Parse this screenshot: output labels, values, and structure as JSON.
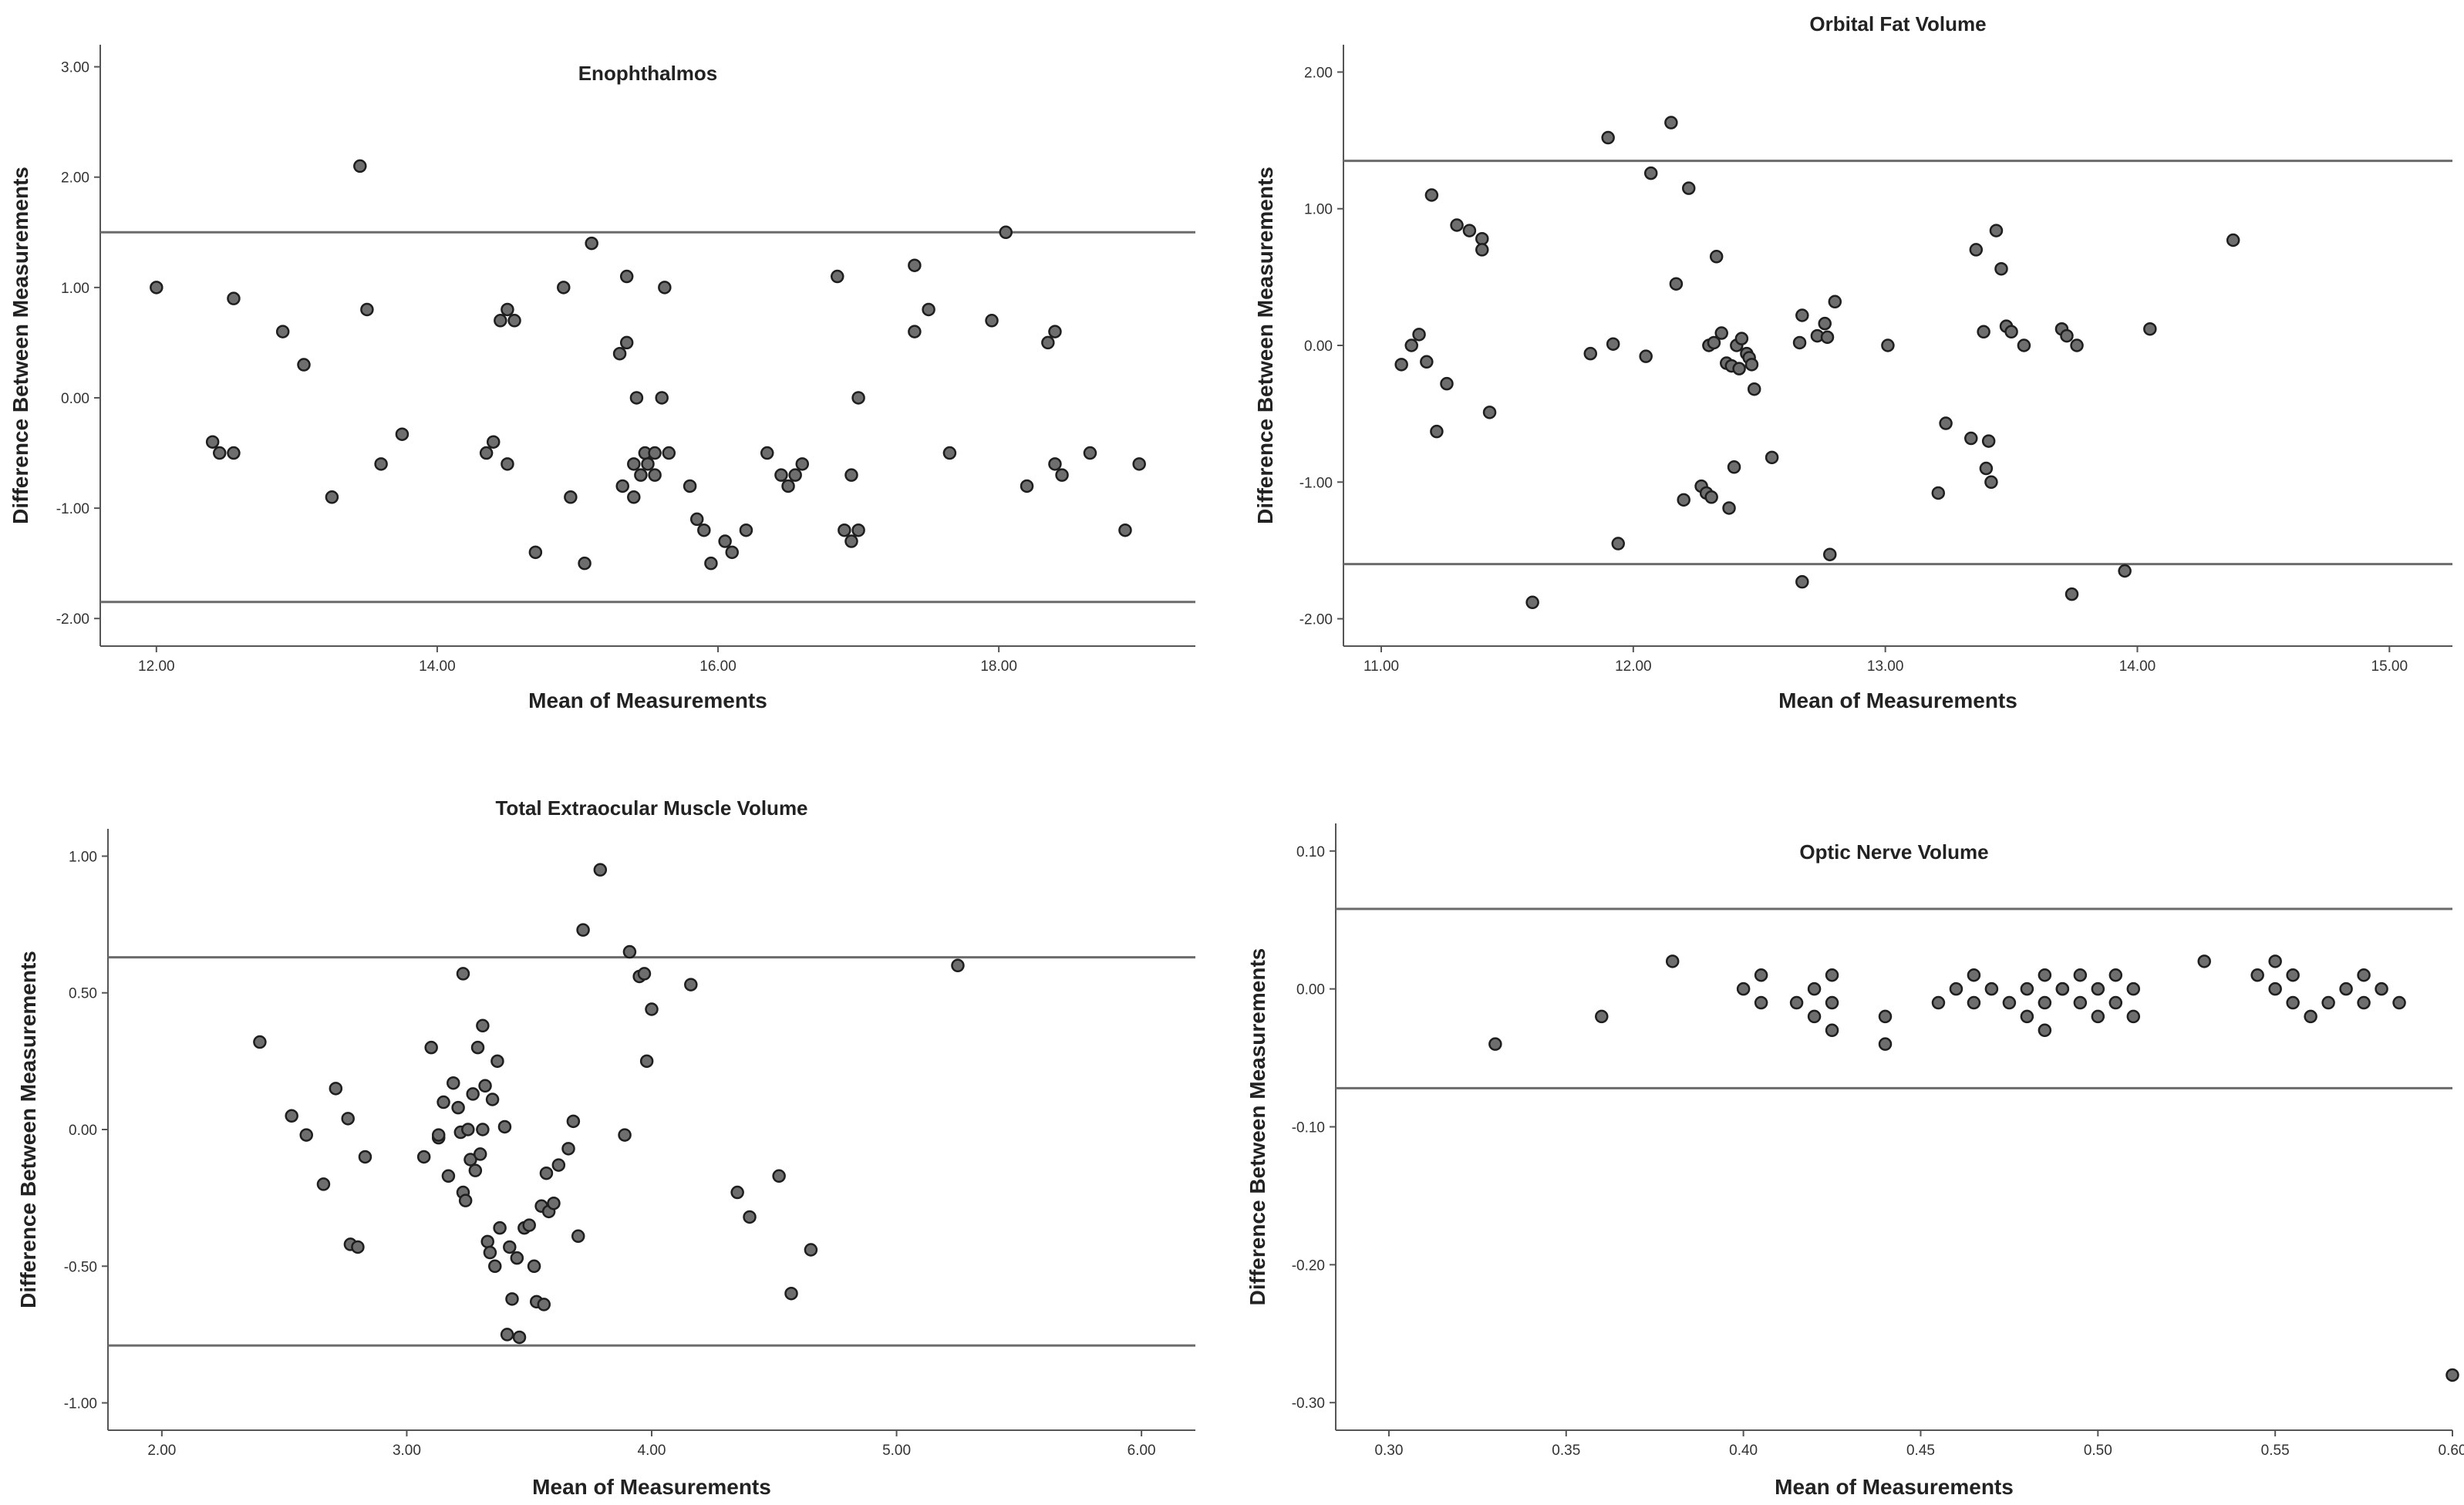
{
  "chart_data": [
    {
      "type": "scatter",
      "title": "Enophthalmos",
      "xlabel": "Mean of Measurements",
      "ylabel": "Difference Between Measurements",
      "xlim": [
        11.6,
        19.4
      ],
      "ylim": [
        -2.25,
        3.2
      ],
      "xticks": [
        12.0,
        14.0,
        16.0,
        18.0
      ],
      "xtick_labels": [
        "12.00",
        "14.00",
        "16.00",
        "18.00"
      ],
      "yticks": [
        -2.0,
        -1.0,
        0.0,
        1.0,
        2.0,
        3.0
      ],
      "ytick_labels": [
        "-2.00",
        "-1.00",
        "0.00",
        "1.00",
        "2.00",
        "3.00"
      ],
      "reference_lines": [
        1.5,
        -1.85
      ],
      "title_position": "inside-top",
      "x": [
        12.0,
        12.4,
        12.45,
        12.55,
        12.55,
        12.9,
        13.05,
        13.25,
        13.45,
        13.5,
        13.6,
        13.75,
        14.35,
        14.4,
        14.45,
        14.5,
        14.5,
        14.55,
        14.7,
        14.9,
        14.95,
        15.05,
        15.1,
        15.3,
        15.32,
        15.35,
        15.35,
        15.4,
        15.4,
        15.42,
        15.45,
        15.48,
        15.5,
        15.55,
        15.55,
        15.6,
        15.62,
        15.65,
        15.8,
        15.85,
        15.9,
        15.95,
        16.05,
        16.1,
        16.2,
        16.35,
        16.45,
        16.5,
        16.55,
        16.6,
        16.85,
        16.9,
        16.95,
        16.95,
        17.0,
        17.0,
        17.4,
        17.4,
        17.5,
        17.65,
        17.95,
        18.05,
        18.2,
        18.35,
        18.4,
        18.4,
        18.45,
        18.65,
        18.9,
        19.0
      ],
      "y": [
        1.0,
        -0.4,
        -0.5,
        0.9,
        -0.5,
        0.6,
        0.3,
        -0.9,
        2.1,
        0.8,
        -0.6,
        -0.33,
        -0.5,
        -0.4,
        0.7,
        0.8,
        -0.6,
        0.7,
        -1.4,
        1.0,
        -0.9,
        -1.5,
        1.4,
        0.4,
        -0.8,
        0.5,
        1.1,
        -0.9,
        -0.6,
        0.0,
        -0.7,
        -0.5,
        -0.6,
        -0.5,
        -0.7,
        0.0,
        1.0,
        -0.5,
        -0.8,
        -1.1,
        -1.2,
        -1.5,
        -1.3,
        -1.4,
        -1.2,
        -0.5,
        -0.7,
        -0.8,
        -0.7,
        -0.6,
        1.1,
        -1.2,
        -0.7,
        -1.3,
        -1.2,
        0.0,
        1.2,
        0.6,
        0.8,
        -0.5,
        0.7,
        1.5,
        -0.8,
        0.5,
        -0.6,
        0.6,
        -0.7,
        -0.5,
        -1.2,
        -0.6
      ]
    },
    {
      "type": "scatter",
      "title": "Orbital Fat Volume",
      "xlabel": "Mean of Measurements",
      "ylabel": "Difference Between Measurements",
      "xlim": [
        10.85,
        15.25
      ],
      "ylim": [
        -2.2,
        2.2
      ],
      "xticks": [
        11.0,
        12.0,
        13.0,
        14.0,
        15.0
      ],
      "xtick_labels": [
        "11.00",
        "12.00",
        "13.00",
        "14.00",
        "15.00"
      ],
      "yticks": [
        -2.0,
        -1.0,
        0.0,
        1.0,
        2.0
      ],
      "ytick_labels": [
        "-2.00",
        "-1.00",
        "0.00",
        "1.00",
        "2.00"
      ],
      "reference_lines": [
        1.35,
        -1.6
      ],
      "title_position": "above",
      "x": [
        11.08,
        11.12,
        11.15,
        11.18,
        11.2,
        11.22,
        11.26,
        11.3,
        11.35,
        11.4,
        11.4,
        11.43,
        11.6,
        11.83,
        11.9,
        11.92,
        11.94,
        12.05,
        12.07,
        12.15,
        12.17,
        12.2,
        12.22,
        12.27,
        12.29,
        12.3,
        12.31,
        12.32,
        12.33,
        12.35,
        12.37,
        12.38,
        12.39,
        12.4,
        12.41,
        12.42,
        12.43,
        12.45,
        12.46,
        12.47,
        12.48,
        12.55,
        12.66,
        12.67,
        12.67,
        12.73,
        12.76,
        12.77,
        12.78,
        12.8,
        13.01,
        13.21,
        13.24,
        13.34,
        13.36,
        13.39,
        13.4,
        13.41,
        13.42,
        13.44,
        13.46,
        13.48,
        13.5,
        13.55,
        13.7,
        13.72,
        13.74,
        13.76,
        13.95,
        14.05,
        14.38
      ],
      "y": [
        -0.14,
        0.0,
        0.08,
        -0.12,
        1.1,
        -0.63,
        -0.28,
        0.88,
        0.84,
        0.78,
        0.7,
        -0.49,
        -1.88,
        -0.06,
        1.52,
        0.01,
        -1.45,
        -0.08,
        1.26,
        1.63,
        0.45,
        -1.13,
        1.15,
        -1.03,
        -1.08,
        0.0,
        -1.11,
        0.02,
        0.65,
        0.09,
        -0.13,
        -1.19,
        -0.15,
        -0.89,
        0.0,
        -0.17,
        0.05,
        -0.06,
        -0.09,
        -0.14,
        -0.32,
        -0.82,
        0.02,
        0.22,
        -1.73,
        0.07,
        0.16,
        0.06,
        -1.53,
        0.32,
        0.0,
        -1.08,
        -0.57,
        -0.68,
        0.7,
        0.1,
        -0.9,
        -0.7,
        -1.0,
        0.84,
        0.56,
        0.14,
        0.1,
        0.0,
        0.12,
        0.07,
        -1.82,
        0.0,
        -1.65,
        0.12,
        0.77
      ]
    },
    {
      "type": "scatter",
      "title": "Total Extraocular Muscle Volume",
      "xlabel": "Mean of Measurements",
      "ylabel": "Difference Between Measurements",
      "xlim": [
        1.78,
        6.22
      ],
      "ylim": [
        -1.1,
        1.1
      ],
      "xticks": [
        2.0,
        3.0,
        4.0,
        5.0,
        6.0
      ],
      "xtick_labels": [
        "2.00",
        "3.00",
        "4.00",
        "5.00",
        "6.00"
      ],
      "yticks": [
        -1.0,
        -0.5,
        0.0,
        0.5,
        1.0
      ],
      "ytick_labels": [
        "-1.00",
        "-0.50",
        "0.00",
        "0.50",
        "1.00"
      ],
      "reference_lines": [
        0.63,
        -0.79
      ],
      "title_position": "above",
      "x": [
        2.4,
        2.53,
        2.59,
        2.66,
        2.71,
        2.76,
        2.77,
        2.8,
        2.83,
        3.07,
        3.1,
        3.13,
        3.13,
        3.15,
        3.17,
        3.19,
        3.21,
        3.22,
        3.23,
        3.23,
        3.24,
        3.25,
        3.26,
        3.27,
        3.28,
        3.29,
        3.3,
        3.31,
        3.31,
        3.32,
        3.33,
        3.34,
        3.35,
        3.36,
        3.37,
        3.38,
        3.4,
        3.41,
        3.42,
        3.43,
        3.45,
        3.46,
        3.48,
        3.5,
        3.52,
        3.53,
        3.55,
        3.56,
        3.57,
        3.58,
        3.6,
        3.62,
        3.66,
        3.68,
        3.7,
        3.72,
        3.79,
        3.89,
        3.91,
        3.95,
        3.97,
        3.98,
        4.0,
        4.16,
        4.35,
        4.4,
        4.52,
        4.57,
        4.65,
        5.25
      ],
      "y": [
        0.32,
        0.05,
        -0.02,
        -0.2,
        0.15,
        0.04,
        -0.42,
        -0.43,
        -0.1,
        -0.1,
        0.3,
        -0.03,
        -0.02,
        0.1,
        -0.17,
        0.17,
        0.08,
        -0.01,
        -0.23,
        0.57,
        -0.26,
        0.0,
        -0.11,
        0.13,
        -0.15,
        0.3,
        -0.09,
        0.38,
        0.0,
        0.16,
        -0.41,
        -0.45,
        0.11,
        -0.5,
        0.25,
        -0.36,
        0.01,
        -0.75,
        -0.43,
        -0.62,
        -0.47,
        -0.76,
        -0.36,
        -0.35,
        -0.5,
        -0.63,
        -0.28,
        -0.64,
        -0.16,
        -0.3,
        -0.27,
        -0.13,
        -0.07,
        0.03,
        -0.39,
        0.73,
        0.95,
        -0.02,
        0.65,
        0.56,
        0.57,
        0.25,
        0.44,
        0.53,
        -0.23,
        -0.32,
        -0.17,
        -0.6,
        -0.44,
        0.6
      ]
    },
    {
      "type": "scatter",
      "title": "Optic Nerve Volume",
      "xlabel": "Mean of Measurements",
      "ylabel": "Difference Between Measurements",
      "xlim": [
        0.285,
        0.6
      ],
      "ylim": [
        -0.32,
        0.12
      ],
      "xticks": [
        0.3,
        0.35,
        0.4,
        0.45,
        0.5,
        0.55,
        0.6
      ],
      "xtick_labels": [
        "0.30",
        "0.35",
        "0.40",
        "0.45",
        "0.50",
        "0.55",
        "0.60"
      ],
      "yticks": [
        -0.3,
        -0.2,
        -0.1,
        0.0,
        0.1
      ],
      "ytick_labels": [
        "-0.30",
        "-0.20",
        "-0.10",
        "0.00",
        "0.10"
      ],
      "reference_lines": [
        0.058,
        -0.072
      ],
      "title_position": "inside-top",
      "x": [
        0.33,
        0.36,
        0.38,
        0.4,
        0.405,
        0.405,
        0.415,
        0.42,
        0.42,
        0.425,
        0.425,
        0.425,
        0.44,
        0.44,
        0.455,
        0.46,
        0.465,
        0.465,
        0.47,
        0.475,
        0.48,
        0.48,
        0.485,
        0.485,
        0.485,
        0.49,
        0.49,
        0.495,
        0.495,
        0.5,
        0.5,
        0.505,
        0.505,
        0.51,
        0.51,
        0.53,
        0.545,
        0.55,
        0.55,
        0.555,
        0.555,
        0.56,
        0.565,
        0.57,
        0.575,
        0.575,
        0.58,
        0.585,
        0.6
      ],
      "y": [
        -0.04,
        -0.02,
        0.02,
        0.0,
        0.01,
        -0.01,
        -0.01,
        0.0,
        -0.02,
        0.01,
        -0.01,
        -0.03,
        -0.02,
        -0.04,
        -0.01,
        0.0,
        0.01,
        -0.01,
        0.0,
        -0.01,
        0.0,
        -0.02,
        0.01,
        -0.01,
        -0.03,
        0.0,
        0.0,
        0.01,
        -0.01,
        0.0,
        -0.02,
        0.01,
        -0.01,
        0.0,
        -0.02,
        0.02,
        0.01,
        0.02,
        0.0,
        0.01,
        -0.01,
        -0.02,
        -0.01,
        0.0,
        0.01,
        -0.01,
        0.0,
        -0.01,
        -0.28
      ]
    }
  ]
}
